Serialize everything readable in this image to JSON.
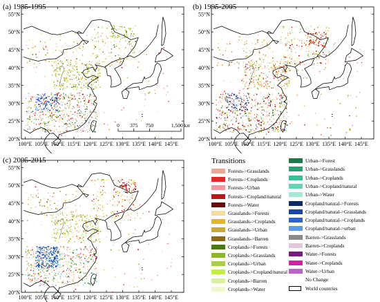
{
  "panels": [
    {
      "label": "(a) 1985-1995"
    },
    {
      "label": "(b) 1995-2005"
    },
    {
      "label": "(c) 2005-2015"
    }
  ],
  "latitude_labels": [
    "55°N",
    "50°N",
    "45°N",
    "40°N",
    "35°N",
    "30°N",
    "25°N",
    "20°N"
  ],
  "longitude_labels": [
    "100°E",
    "105°E",
    "110°E",
    "115°E",
    "120°E",
    "125°E",
    "130°E",
    "135°E",
    "140°E",
    "145°E"
  ],
  "scale_bar": {
    "ticks": [
      "0",
      "375",
      "750",
      "1,500 km"
    ]
  },
  "legend": {
    "title": "Transitions",
    "items": [
      {
        "label": "Forests->Grasslands",
        "color": "#e8a898"
      },
      {
        "label": "Forests->Croplands",
        "color": "#e8262a"
      },
      {
        "label": "Forests->Urban",
        "color": "#f09aa0"
      },
      {
        "label": "Forests->Cropland/natural",
        "color": "#b81818"
      },
      {
        "label": "Forests->Water",
        "color": "#6a0a0a"
      },
      {
        "label": "Grasslands->Forests",
        "color": "#f5dca0"
      },
      {
        "label": "Grasslands->Croplands",
        "color": "#e6b828"
      },
      {
        "label": "Grasslands->Urban",
        "color": "#c8a838"
      },
      {
        "label": "Grasslands->Barren",
        "color": "#8c6a18"
      },
      {
        "label": "Croplands->Forests",
        "color": "#4a7a10"
      },
      {
        "label": "Croplands->Grasslands",
        "color": "#8ab828"
      },
      {
        "label": "Croplands->Urban",
        "color": "#a8d040"
      },
      {
        "label": "Croplands->Cropland/natural",
        "color": "#c4ec50"
      },
      {
        "label": "Croplands->Barren",
        "color": "#d8f0a0"
      },
      {
        "label": "Croplands->Water",
        "color": "#eef8c8"
      },
      {
        "label": "Urban->Forest",
        "color": "#1a7a4a"
      },
      {
        "label": "Urban->Grasslands",
        "color": "#2aa070"
      },
      {
        "label": "Urban->Croplands",
        "color": "#3ac096"
      },
      {
        "label": "Urban->Cropland/natural",
        "color": "#66d4b4"
      },
      {
        "label": "Urban->Water",
        "color": "#a4e8d8"
      },
      {
        "label": "Cropland/natural->Forests",
        "color": "#0a2a6a"
      },
      {
        "label": "Cropland/natural->Grasslands",
        "color": "#1a44aa"
      },
      {
        "label": "Cropland/natural->Croplands",
        "color": "#2a64d0"
      },
      {
        "label": "Cropland/natural->urban",
        "color": "#5a9ae8"
      },
      {
        "label": "Barren->Grasslands",
        "color": "#8a8a8a"
      },
      {
        "label": "Barren->Croplands",
        "color": "#e0c8d8"
      },
      {
        "label": "Water->Forests",
        "color": "#7a1a7a"
      },
      {
        "label": "Water->Croplands",
        "color": "#d020a8"
      },
      {
        "label": "Water->Urban",
        "color": "#c060d0"
      },
      {
        "label": "No Change",
        "color": "#ffffff"
      },
      {
        "label": "World countries",
        "color": "#ffffff"
      }
    ]
  }
}
